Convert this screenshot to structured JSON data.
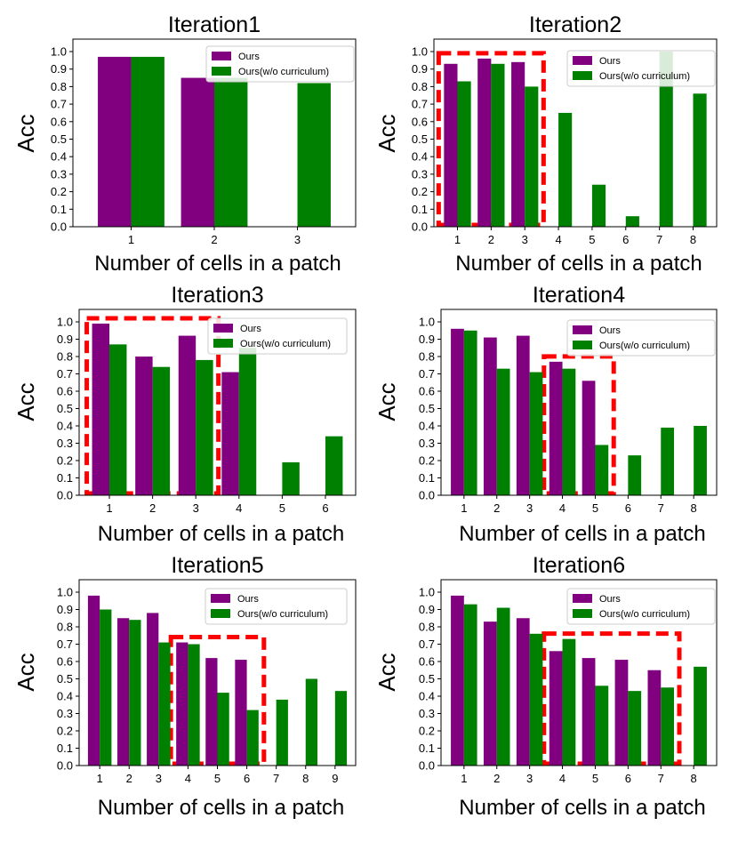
{
  "colors": {
    "ours": "#800080",
    "ours_wo": "#008000",
    "highlight": "#ff0000",
    "axis": "#000000",
    "legend_border": "#cccccc"
  },
  "chart_data": [
    {
      "type": "bar",
      "title": "Iteration1",
      "xlabel": "Number of cells in a patch",
      "ylabel": "Acc",
      "categories": [
        "1",
        "2",
        "3"
      ],
      "ylim": [
        0,
        1.0
      ],
      "yticks": [
        "0.0",
        "0.1",
        "0.2",
        "0.3",
        "0.4",
        "0.5",
        "0.6",
        "0.7",
        "0.8",
        "0.9",
        "1.0"
      ],
      "series": [
        {
          "name": "Ours",
          "values": [
            0.97,
            0.85,
            null
          ]
        },
        {
          "name": "Ours(w/o curriculum)",
          "values": [
            0.97,
            0.85,
            0.82
          ]
        }
      ],
      "legend": "top-right",
      "highlight": null
    },
    {
      "type": "bar",
      "title": "Iteration2",
      "xlabel": "Number of cells in a patch",
      "ylabel": "Acc",
      "categories": [
        "1",
        "2",
        "3",
        "4",
        "5",
        "6",
        "7",
        "8"
      ],
      "ylim": [
        0,
        1.0
      ],
      "yticks": [
        "0.0",
        "0.1",
        "0.2",
        "0.3",
        "0.4",
        "0.5",
        "0.6",
        "0.7",
        "0.8",
        "0.9",
        "1.0"
      ],
      "series": [
        {
          "name": "Ours",
          "values": [
            0.93,
            0.96,
            0.94,
            null,
            null,
            null,
            null,
            null
          ]
        },
        {
          "name": "Ours(w/o curriculum)",
          "values": [
            0.83,
            0.93,
            0.8,
            0.65,
            0.24,
            0.06,
            1.0,
            0.76
          ]
        }
      ],
      "legend": "top-right",
      "highlight": {
        "from": "1",
        "to": "3"
      }
    },
    {
      "type": "bar",
      "title": "Iteration3",
      "xlabel": "Number of cells in a patch",
      "ylabel": "Acc",
      "categories": [
        "1",
        "2",
        "3",
        "4",
        "5",
        "6"
      ],
      "ylim": [
        0,
        1.0
      ],
      "yticks": [
        "0.0",
        "0.1",
        "0.2",
        "0.3",
        "0.4",
        "0.5",
        "0.6",
        "0.7",
        "0.8",
        "0.9",
        "1.0"
      ],
      "series": [
        {
          "name": "Ours",
          "values": [
            0.99,
            0.8,
            0.92,
            0.71,
            null,
            null
          ]
        },
        {
          "name": "Ours(w/o curriculum)",
          "values": [
            0.87,
            0.74,
            0.78,
            0.85,
            0.19,
            0.34
          ]
        }
      ],
      "legend": "top-right",
      "highlight": {
        "from": "1",
        "to": "3"
      }
    },
    {
      "type": "bar",
      "title": "Iteration4",
      "xlabel": "Number of cells in a patch",
      "ylabel": "Acc",
      "categories": [
        "1",
        "2",
        "3",
        "4",
        "5",
        "6",
        "7",
        "8"
      ],
      "ylim": [
        0,
        1.0
      ],
      "yticks": [
        "0.0",
        "0.1",
        "0.2",
        "0.3",
        "0.4",
        "0.5",
        "0.6",
        "0.7",
        "0.8",
        "0.9",
        "1.0"
      ],
      "series": [
        {
          "name": "Ours",
          "values": [
            0.96,
            0.91,
            0.92,
            0.77,
            0.66,
            null,
            null,
            null
          ]
        },
        {
          "name": "Ours(w/o curriculum)",
          "values": [
            0.95,
            0.73,
            0.71,
            0.73,
            0.29,
            0.23,
            0.39,
            0.4
          ]
        }
      ],
      "legend": "top-right",
      "highlight": {
        "from": "4",
        "to": "5"
      }
    },
    {
      "type": "bar",
      "title": "Iteration5",
      "xlabel": "Number of cells in a patch",
      "ylabel": "Acc",
      "categories": [
        "1",
        "2",
        "3",
        "4",
        "5",
        "6",
        "7",
        "8",
        "9"
      ],
      "ylim": [
        0,
        1.0
      ],
      "yticks": [
        "0.0",
        "0.1",
        "0.2",
        "0.3",
        "0.4",
        "0.5",
        "0.6",
        "0.7",
        "0.8",
        "0.9",
        "1.0"
      ],
      "series": [
        {
          "name": "Ours",
          "values": [
            0.98,
            0.85,
            0.88,
            0.71,
            0.62,
            0.61,
            null,
            null,
            null
          ]
        },
        {
          "name": "Ours(w/o curriculum)",
          "values": [
            0.9,
            0.84,
            0.71,
            0.7,
            0.42,
            0.32,
            0.38,
            0.5,
            0.43
          ]
        }
      ],
      "legend": "top-right",
      "highlight": {
        "from": "4",
        "to": "6"
      }
    },
    {
      "type": "bar",
      "title": "Iteration6",
      "xlabel": "Number of cells in a patch",
      "ylabel": "Acc",
      "categories": [
        "1",
        "2",
        "3",
        "4",
        "5",
        "6",
        "7",
        "8"
      ],
      "ylim": [
        0,
        1.0
      ],
      "yticks": [
        "0.0",
        "0.1",
        "0.2",
        "0.3",
        "0.4",
        "0.5",
        "0.6",
        "0.7",
        "0.8",
        "0.9",
        "1.0"
      ],
      "series": [
        {
          "name": "Ours",
          "values": [
            0.98,
            0.83,
            0.85,
            0.66,
            0.62,
            0.61,
            0.55,
            null
          ]
        },
        {
          "name": "Ours(w/o curriculum)",
          "values": [
            0.93,
            0.91,
            0.76,
            0.73,
            0.46,
            0.43,
            0.45,
            0.57
          ]
        }
      ],
      "legend": "top-right",
      "highlight": {
        "from": "4",
        "to": "7"
      }
    }
  ]
}
